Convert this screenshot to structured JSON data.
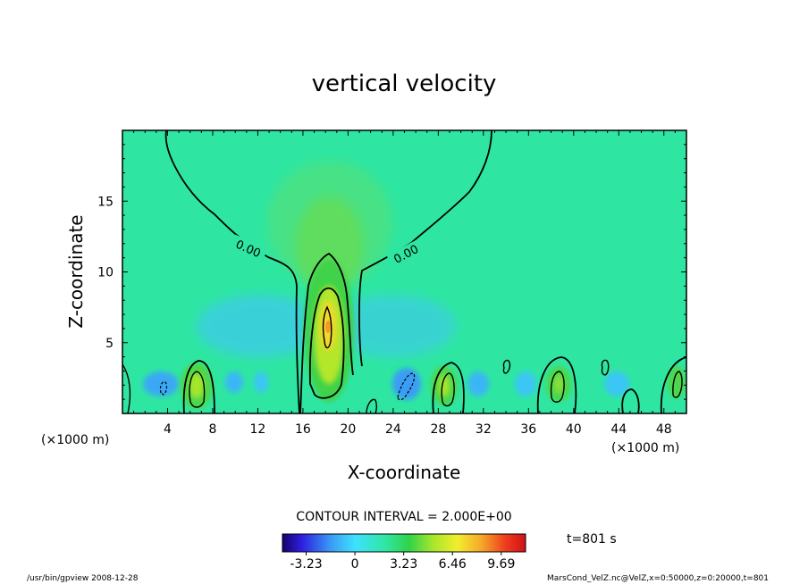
{
  "chart_data": {
    "type": "heatmap",
    "title": "vertical velocity",
    "xlabel": "X-coordinate",
    "ylabel": "Z-coordinate",
    "x_unit": "(×1000 m)",
    "x_unit_right": "(×1000 m)",
    "xlim": [
      0,
      50
    ],
    "ylim": [
      0,
      20
    ],
    "x_ticks": [
      4,
      8,
      12,
      16,
      20,
      24,
      28,
      32,
      36,
      40,
      44,
      48
    ],
    "y_ticks": [
      5,
      10,
      15
    ],
    "contour_interval_label": "CONTOUR INTERVAL = 2.000E+00",
    "contour_labels": [
      "0.00",
      "0.00"
    ],
    "colorbar": {
      "range": [
        -4.8,
        11.3
      ],
      "tick_labels": [
        "-3.23",
        "0",
        "3.23",
        "6.46",
        "9.69"
      ],
      "tick_values": [
        -3.23,
        0,
        3.23,
        6.46,
        9.69
      ]
    },
    "field_features": [
      {
        "kind": "updraft-max",
        "x": 18.5,
        "z": 6.2,
        "value": 9.69
      },
      {
        "kind": "updraft",
        "x": 6.5,
        "z": 2.2,
        "value": 3.5
      },
      {
        "kind": "updraft",
        "x": 28.5,
        "z": 2.2,
        "value": 3.0
      },
      {
        "kind": "updraft",
        "x": 38.5,
        "z": 2.2,
        "value": 2.5
      },
      {
        "kind": "updraft",
        "x": 48.5,
        "z": 2.2,
        "value": 2.0
      },
      {
        "kind": "downdraft",
        "x": 3.8,
        "z": 1.8,
        "value": -2.5
      },
      {
        "kind": "downdraft",
        "x": 25.5,
        "z": 2.0,
        "value": -3.0
      },
      {
        "kind": "downdraft",
        "x": 12.0,
        "z": 2.0,
        "value": -1.8
      },
      {
        "kind": "downdraft",
        "x": 14.0,
        "z": 6.5,
        "value": -1.5
      },
      {
        "kind": "downdraft",
        "x": 22.0,
        "z": 6.5,
        "value": -1.5
      }
    ]
  },
  "time_label": "t=801 s",
  "footer_left": "/usr/bin/gpview   2008-12-28",
  "footer_right": "MarsCond_VelZ.nc@VelZ,x=0:50000,z=0:20000,t=801",
  "colors": {
    "background_field": "#2ee6a2",
    "frame": "#000000"
  }
}
